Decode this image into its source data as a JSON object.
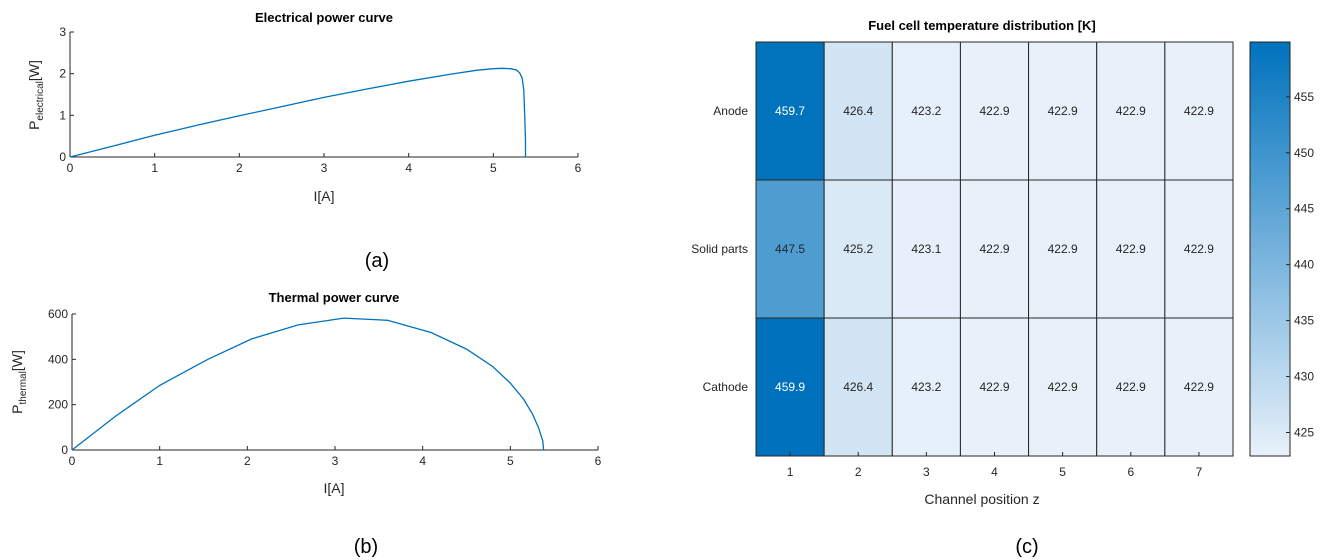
{
  "chart_data": [
    {
      "type": "line",
      "panel": "(a)",
      "title": "Electrical power curve",
      "xlabel": "I[A]",
      "ylabel_main": "P",
      "ylabel_sub": "electrical",
      "ylabel_unit": "[W]",
      "xlim": [
        0,
        6
      ],
      "ylim": [
        0,
        3
      ],
      "xticks": [
        "0",
        "1",
        "2",
        "3",
        "4",
        "5",
        "6"
      ],
      "yticks": [
        "0",
        "1",
        "2",
        "3"
      ],
      "series": [
        {
          "x": [
            0,
            0.5,
            1,
            1.5,
            2,
            2.5,
            3,
            3.5,
            4,
            4.5,
            4.8,
            5.0,
            5.1,
            5.2,
            5.27,
            5.31,
            5.34,
            5.36,
            5.37,
            5.38,
            5.38
          ],
          "y": [
            0,
            0.26,
            0.52,
            0.76,
            0.99,
            1.21,
            1.43,
            1.63,
            1.82,
            1.99,
            2.08,
            2.12,
            2.13,
            2.12,
            2.09,
            2.02,
            1.9,
            1.6,
            1.0,
            0.4,
            0
          ]
        }
      ]
    },
    {
      "type": "line",
      "panel": "(b)",
      "title": "Thermal power curve",
      "xlabel": "I[A]",
      "ylabel_main": "P",
      "ylabel_sub": "thermal",
      "ylabel_unit": "[W]",
      "xlim": [
        0,
        6
      ],
      "ylim": [
        0,
        600
      ],
      "xticks": [
        "0",
        "1",
        "2",
        "3",
        "4",
        "5",
        "6"
      ],
      "yticks": [
        "0",
        "200",
        "400",
        "600"
      ],
      "series": [
        {
          "x": [
            0,
            0.5,
            1.0,
            1.55,
            2.05,
            2.58,
            3.1,
            3.6,
            4.1,
            4.5,
            4.8,
            5.0,
            5.15,
            5.25,
            5.32,
            5.37,
            5.38
          ],
          "y": [
            0,
            150,
            285,
            400,
            490,
            552,
            582,
            572,
            518,
            445,
            368,
            295,
            225,
            160,
            100,
            40,
            0
          ]
        }
      ]
    },
    {
      "type": "heatmap",
      "panel": "(c)",
      "title": "Fuel cell temperature distribution [K]",
      "xlabel": "Channel position z",
      "x": [
        "1",
        "2",
        "3",
        "4",
        "5",
        "6",
        "7"
      ],
      "y": [
        "Anode",
        "Solid parts",
        "Cathode"
      ],
      "values": [
        [
          459.7,
          426.4,
          423.2,
          422.9,
          422.9,
          422.9,
          422.9
        ],
        [
          447.5,
          425.2,
          423.1,
          422.9,
          422.9,
          422.9,
          422.9
        ],
        [
          459.9,
          426.4,
          423.2,
          422.9,
          422.9,
          422.9,
          422.9
        ]
      ],
      "colorbar": {
        "range": [
          422.9,
          459.9
        ],
        "ticks": [
          "425",
          "430",
          "435",
          "440",
          "445",
          "450",
          "455"
        ],
        "color_low": "#e8f1fa",
        "color_high": "#0072bd"
      }
    }
  ]
}
